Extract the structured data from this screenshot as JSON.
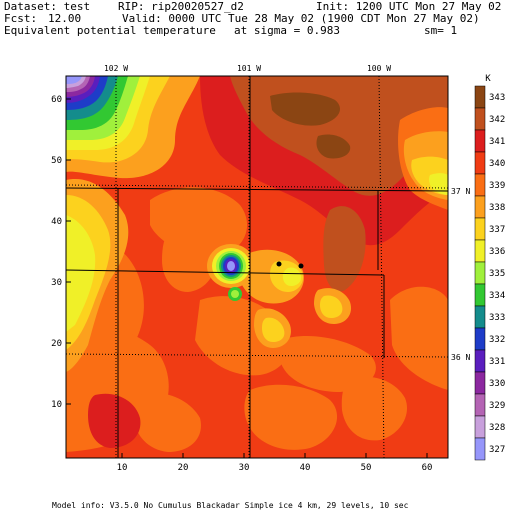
{
  "header": {
    "dataset": "Dataset: test",
    "rip": "RIP: rip20020527_d2",
    "init": "Init: 1200 UTC Mon 27 May 02",
    "fcst_label": "Fcst:",
    "fcst_value": "12.00",
    "valid": "Valid: 0000 UTC Tue 28 May 02 (1900 CDT Mon 27 May 02)",
    "field": "Equivalent potential temperature",
    "sigma": "at sigma = 0.983",
    "sm": "sm= 1"
  },
  "footer": {
    "model_info": "Model info: V3.5.0 No Cumulus Blackadar  Simple ice    4 km,  29 levels,   10 sec"
  },
  "map": {
    "x_ticks": [
      "10",
      "20",
      "30",
      "40",
      "50",
      "60"
    ],
    "y_ticks": [
      "10",
      "20",
      "30",
      "40",
      "50",
      "60"
    ],
    "lon_labels": [
      "102 W",
      "101 W",
      "100 W"
    ],
    "lat_labels": [
      "37 N",
      "36 N"
    ]
  },
  "colorbar": {
    "unit": "K",
    "levels": [
      "343",
      "342",
      "341",
      "340",
      "339",
      "338",
      "337",
      "336",
      "335",
      "334",
      "333",
      "332",
      "331",
      "330",
      "329",
      "328",
      "327"
    ],
    "colors": [
      "#8b4513",
      "#c0501e",
      "#dc1e1e",
      "#f03c14",
      "#fa6e14",
      "#fca01e",
      "#fcd21e",
      "#f0f028",
      "#a0f03c",
      "#32c832",
      "#148c8c",
      "#1e3cc8",
      "#5a1ebe",
      "#8c28a0",
      "#b464b4",
      "#c8a0dc",
      "#9696fa"
    ]
  }
}
